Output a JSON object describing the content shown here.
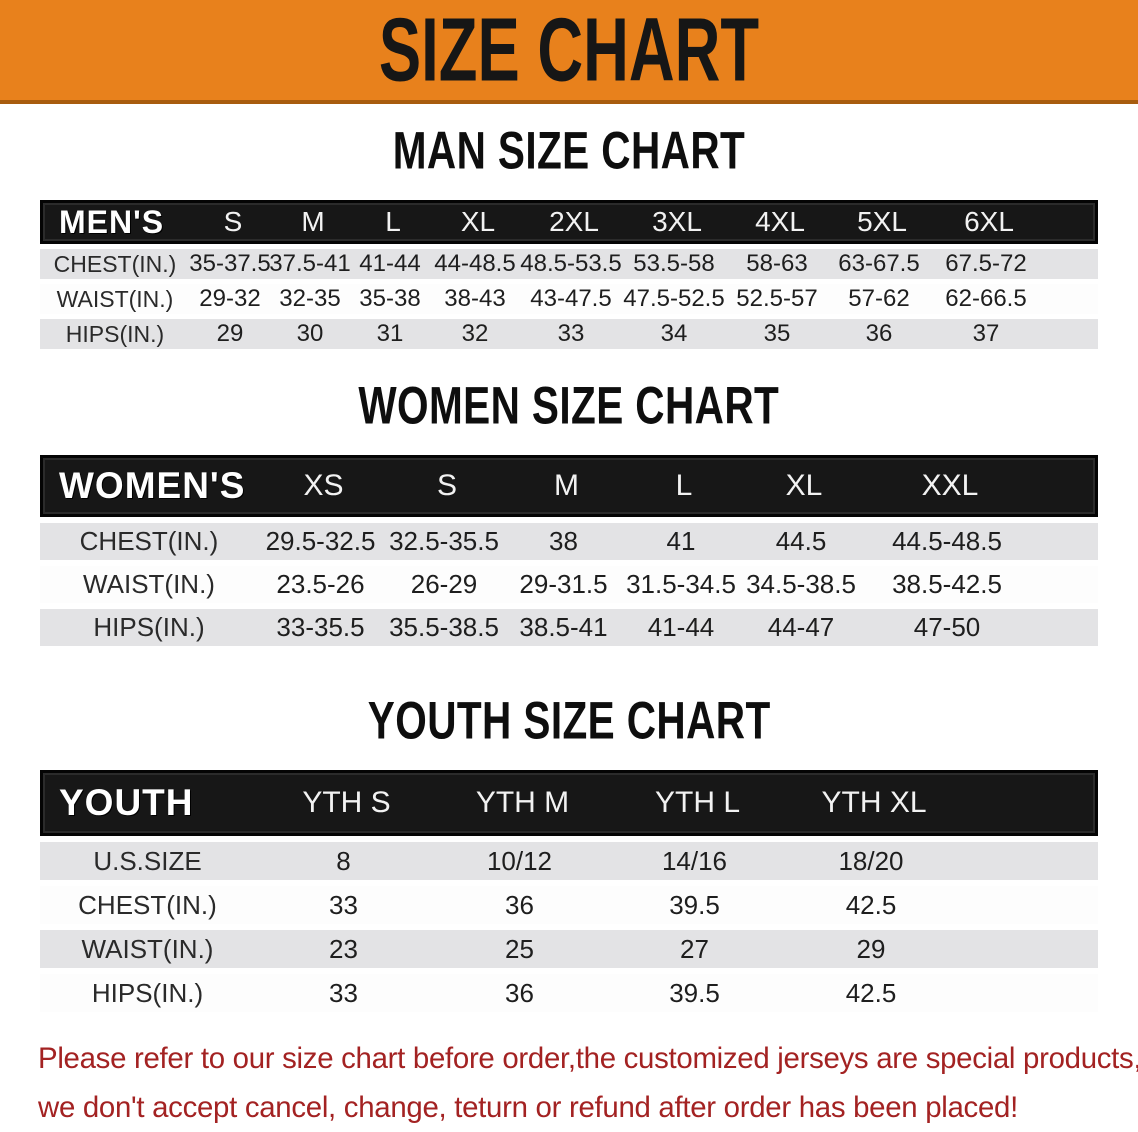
{
  "banner": {
    "title": "SIZE CHART",
    "background_color": "#e8811c"
  },
  "chart_data": [
    {
      "type": "table",
      "name": "mens",
      "title": "MAN SIZE CHART",
      "header_label": "MEN'S",
      "columns": [
        "S",
        "M",
        "L",
        "XL",
        "2XL",
        "3XL",
        "4XL",
        "5XL",
        "6XL"
      ],
      "rows": [
        {
          "label": "CHEST(IN.)",
          "values": [
            "35-37.5",
            "37.5-41",
            "41-44",
            "44-48.5",
            "48.5-53.5",
            "53.5-58",
            "58-63",
            "63-67.5",
            "67.5-72"
          ]
        },
        {
          "label": "WAIST(IN.)",
          "values": [
            "29-32",
            "32-35",
            "35-38",
            "38-43",
            "43-47.5",
            "47.5-52.5",
            "52.5-57",
            "57-62",
            "62-66.5"
          ]
        },
        {
          "label": "HIPS(IN.)",
          "values": [
            "29",
            "30",
            "31",
            "32",
            "33",
            "34",
            "35",
            "36",
            "37"
          ]
        }
      ]
    },
    {
      "type": "table",
      "name": "womens",
      "title": "WOMEN SIZE CHART",
      "header_label": "WOMEN'S",
      "columns": [
        "XS",
        "S",
        "M",
        "L",
        "XL",
        "XXL"
      ],
      "rows": [
        {
          "label": "CHEST(IN.)",
          "values": [
            "29.5-32.5",
            "32.5-35.5",
            "38",
            "41",
            "44.5",
            "44.5-48.5"
          ]
        },
        {
          "label": "WAIST(IN.)",
          "values": [
            "23.5-26",
            "26-29",
            "29-31.5",
            "31.5-34.5",
            "34.5-38.5",
            "38.5-42.5"
          ]
        },
        {
          "label": "HIPS(IN.)",
          "values": [
            "33-35.5",
            "35.5-38.5",
            "38.5-41",
            "41-44",
            "44-47",
            "47-50"
          ]
        }
      ]
    },
    {
      "type": "table",
      "name": "youth",
      "title": "YOUTH SIZE CHART",
      "header_label": "YOUTH",
      "columns": [
        "YTH S",
        "YTH M",
        "YTH L",
        "YTH XL"
      ],
      "rows": [
        {
          "label": "U.S.SIZE",
          "values": [
            "8",
            "10/12",
            "14/16",
            "18/20"
          ]
        },
        {
          "label": "CHEST(IN.)",
          "values": [
            "33",
            "36",
            "39.5",
            "42.5"
          ]
        },
        {
          "label": "WAIST(IN.)",
          "values": [
            "23",
            "25",
            "27",
            "29"
          ]
        },
        {
          "label": "HIPS(IN.)",
          "values": [
            "33",
            "36",
            "39.5",
            "42.5"
          ]
        }
      ]
    }
  ],
  "footer": {
    "line1": "Please refer to our size chart before order,the customized jerseys are special products,",
    "line2": "we don't accept cancel, change, teturn or refund after order has been placed!",
    "color": "#a32222"
  }
}
